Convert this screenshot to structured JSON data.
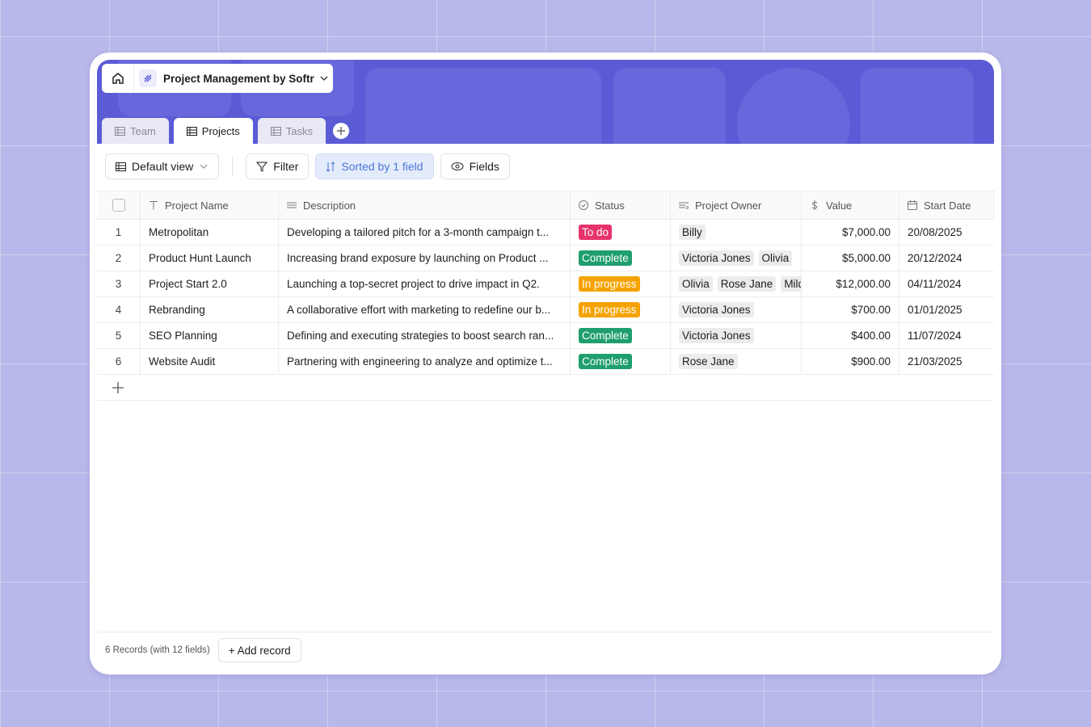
{
  "header": {
    "app_title": "Project Management by Softr"
  },
  "tabs": [
    "Team",
    "Projects",
    "Tasks"
  ],
  "toolbar": {
    "view": "Default view",
    "filter": "Filter",
    "sort": "Sorted by 1 field",
    "fields": "Fields"
  },
  "table": {
    "columns": [
      "Project Name",
      "Description",
      "Status",
      "Project Owner",
      "Value",
      "Start Date"
    ],
    "rows": [
      {
        "index": 1,
        "name": "Metropolitan",
        "description": "Developing a tailored pitch for a 3-month campaign t...",
        "status": "To do",
        "status_color": "#e8336d",
        "owners": [
          "Billy"
        ],
        "value": "$7,000.00",
        "start_date": "20/08/2025"
      },
      {
        "index": 2,
        "name": "Product Hunt Launch",
        "description": "Increasing brand exposure by launching on Product ...",
        "status": "Complete",
        "status_color": "#1f9e6e",
        "owners": [
          "Victoria Jones",
          "Olivia"
        ],
        "value": "$5,000.00",
        "start_date": "20/12/2024"
      },
      {
        "index": 3,
        "name": "Project Start 2.0",
        "description": "Launching a top-secret project to drive impact in Q2.",
        "status": "In progress",
        "status_color": "#f5a300",
        "owners": [
          "Olivia",
          "Rose Jane",
          "Mild"
        ],
        "value": "$12,000.00",
        "start_date": "04/11/2024"
      },
      {
        "index": 4,
        "name": "Rebranding",
        "description": "A collaborative effort with marketing to redefine our b...",
        "status": "In progress",
        "status_color": "#f5a300",
        "owners": [
          "Victoria Jones"
        ],
        "value": "$700.00",
        "start_date": "01/01/2025"
      },
      {
        "index": 5,
        "name": "SEO Planning",
        "description": "Defining and executing strategies to boost search ran...",
        "status": "Complete",
        "status_color": "#1f9e6e",
        "owners": [
          "Victoria Jones"
        ],
        "value": "$400.00",
        "start_date": "11/07/2024"
      },
      {
        "index": 6,
        "name": "Website Audit",
        "description": "Partnering with engineering to analyze and optimize t...",
        "status": "Complete",
        "status_color": "#1f9e6e",
        "owners": [
          "Rose Jane"
        ],
        "value": "$900.00",
        "start_date": "21/03/2025"
      }
    ]
  },
  "footer": {
    "records": "6 Records (with 12 fields)",
    "add_record": "+ Add record"
  }
}
